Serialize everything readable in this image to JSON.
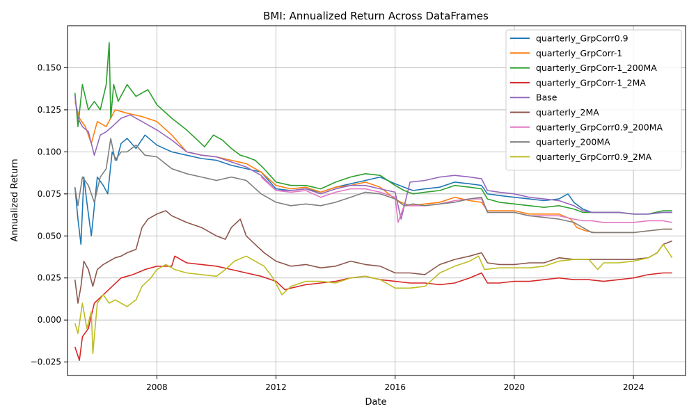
{
  "chart_data": {
    "type": "line",
    "title": "BMI: Annualized Return Across DataFrames",
    "xlabel": "Date",
    "ylabel": "Annualized Return",
    "xlim": [
      2005.0,
      2025.75
    ],
    "ylim": [
      -0.033,
      0.175
    ],
    "x_ticks": [
      2008,
      2012,
      2016,
      2020,
      2024
    ],
    "x_tick_labels": [
      "2008",
      "2012",
      "2016",
      "2020",
      "2024"
    ],
    "y_ticks": [
      -0.025,
      0.0,
      0.025,
      0.05,
      0.075,
      0.1,
      0.125,
      0.15
    ],
    "y_tick_labels": [
      "−0.025",
      "0.000",
      "0.025",
      "0.050",
      "0.075",
      "0.100",
      "0.125",
      "0.150"
    ],
    "grid": true,
    "legend_position": "top-right",
    "series": [
      {
        "name": "quarterly_GrpCorr0.9",
        "color": "#1f77b4",
        "x": [
          2005.25,
          2005.35,
          2005.45,
          2005.55,
          2005.65,
          2005.8,
          2006.0,
          2006.2,
          2006.35,
          2006.5,
          2006.65,
          2006.8,
          2007.0,
          2007.3,
          2007.6,
          2008.0,
          2008.5,
          2009.0,
          2009.5,
          2010.0,
          2010.5,
          2011.0,
          2011.5,
          2012.0,
          2012.5,
          2013.0,
          2013.5,
          2014.0,
          2014.5,
          2015.0,
          2015.5,
          2016.0,
          2016.3,
          2016.6,
          2017.0,
          2017.5,
          2018.0,
          2018.5,
          2018.9,
          2019.1,
          2019.5,
          2020.0,
          2020.5,
          2021.0,
          2021.5,
          2021.8,
          2022.0,
          2022.3,
          2022.6,
          2023.0,
          2023.5,
          2024.0,
          2024.5,
          2025.0,
          2025.3
        ],
        "y": [
          0.079,
          0.06,
          0.045,
          0.085,
          0.07,
          0.05,
          0.085,
          0.08,
          0.075,
          0.1,
          0.095,
          0.105,
          0.108,
          0.102,
          0.11,
          0.104,
          0.1,
          0.098,
          0.096,
          0.095,
          0.092,
          0.09,
          0.088,
          0.078,
          0.077,
          0.078,
          0.076,
          0.079,
          0.081,
          0.083,
          0.085,
          0.081,
          0.079,
          0.077,
          0.078,
          0.079,
          0.082,
          0.081,
          0.08,
          0.075,
          0.074,
          0.073,
          0.072,
          0.071,
          0.072,
          0.075,
          0.07,
          0.066,
          0.064,
          0.064,
          0.064,
          0.063,
          0.063,
          0.064,
          0.064
        ]
      },
      {
        "name": "quarterly_GrpCorr-1",
        "color": "#ff7f0e",
        "x": [
          2005.25,
          2005.4,
          2005.6,
          2005.8,
          2006.0,
          2006.3,
          2006.6,
          2007.0,
          2007.5,
          2008.0,
          2008.5,
          2009.0,
          2009.5,
          2010.0,
          2010.5,
          2011.0,
          2011.5,
          2012.0,
          2012.5,
          2013.0,
          2013.5,
          2014.0,
          2014.5,
          2015.0,
          2015.5,
          2016.0,
          2016.2,
          2016.5,
          2017.0,
          2017.5,
          2018.0,
          2018.5,
          2018.9,
          2019.1,
          2019.5,
          2020.0,
          2020.5,
          2021.0,
          2021.5,
          2021.9,
          2022.1,
          2022.4,
          2022.7,
          2023.0,
          2023.5,
          2024.0,
          2024.5,
          2025.0,
          2025.3
        ],
        "y": [
          0.13,
          0.12,
          0.115,
          0.105,
          0.118,
          0.115,
          0.125,
          0.123,
          0.121,
          0.118,
          0.11,
          0.1,
          0.098,
          0.097,
          0.095,
          0.093,
          0.088,
          0.08,
          0.078,
          0.079,
          0.076,
          0.079,
          0.08,
          0.082,
          0.079,
          0.072,
          0.07,
          0.068,
          0.069,
          0.07,
          0.073,
          0.071,
          0.07,
          0.065,
          0.065,
          0.065,
          0.063,
          0.063,
          0.063,
          0.06,
          0.055,
          0.053,
          0.052,
          0.052,
          0.052,
          0.052,
          0.053,
          0.054,
          0.054
        ]
      },
      {
        "name": "quarterly_GrpCorr-1_200MA",
        "color": "#2ca02c",
        "x": [
          2005.25,
          2005.35,
          2005.5,
          2005.7,
          2005.9,
          2006.1,
          2006.3,
          2006.4,
          2006.45,
          2006.55,
          2006.7,
          2007.0,
          2007.3,
          2007.7,
          2008.0,
          2008.5,
          2009.0,
          2009.6,
          2009.9,
          2010.2,
          2010.5,
          2010.8,
          2011.0,
          2011.3,
          2011.6,
          2012.0,
          2012.5,
          2013.0,
          2013.5,
          2014.0,
          2014.5,
          2015.0,
          2015.5,
          2016.0,
          2016.3,
          2016.6,
          2017.0,
          2017.5,
          2018.0,
          2018.5,
          2018.9,
          2019.1,
          2019.5,
          2020.0,
          2020.5,
          2021.0,
          2021.5,
          2022.0,
          2022.3,
          2022.6,
          2023.0,
          2023.5,
          2024.0,
          2024.5,
          2025.0,
          2025.3
        ],
        "y": [
          0.135,
          0.115,
          0.14,
          0.125,
          0.13,
          0.125,
          0.14,
          0.165,
          0.12,
          0.14,
          0.13,
          0.14,
          0.133,
          0.137,
          0.128,
          0.12,
          0.113,
          0.103,
          0.11,
          0.107,
          0.102,
          0.098,
          0.097,
          0.095,
          0.09,
          0.082,
          0.08,
          0.08,
          0.078,
          0.082,
          0.085,
          0.087,
          0.086,
          0.08,
          0.077,
          0.075,
          0.076,
          0.077,
          0.08,
          0.079,
          0.078,
          0.072,
          0.07,
          0.069,
          0.068,
          0.067,
          0.068,
          0.066,
          0.064,
          0.064,
          0.064,
          0.064,
          0.063,
          0.063,
          0.065,
          0.065
        ]
      },
      {
        "name": "quarterly_GrpCorr-1_2MA",
        "color": "#d62728",
        "x": [
          2005.25,
          2005.4,
          2005.5,
          2005.7,
          2005.9,
          2006.2,
          2006.5,
          2006.8,
          2007.2,
          2007.6,
          2008.0,
          2008.5,
          2008.6,
          2009.0,
          2009.5,
          2010.0,
          2010.5,
          2011.0,
          2011.5,
          2012.0,
          2012.3,
          2012.5,
          2013.0,
          2013.5,
          2014.0,
          2014.5,
          2015.0,
          2015.5,
          2016.0,
          2016.5,
          2017.0,
          2017.5,
          2018.0,
          2018.5,
          2018.9,
          2019.1,
          2019.5,
          2020.0,
          2020.5,
          2021.0,
          2021.5,
          2022.0,
          2022.5,
          2023.0,
          2023.5,
          2024.0,
          2024.5,
          2025.0,
          2025.3
        ],
        "y": [
          -0.016,
          -0.024,
          -0.01,
          -0.005,
          0.01,
          0.015,
          0.02,
          0.025,
          0.027,
          0.03,
          0.032,
          0.032,
          0.038,
          0.034,
          0.033,
          0.032,
          0.03,
          0.028,
          0.026,
          0.023,
          0.018,
          0.019,
          0.021,
          0.022,
          0.023,
          0.025,
          0.026,
          0.024,
          0.023,
          0.022,
          0.022,
          0.021,
          0.022,
          0.025,
          0.028,
          0.022,
          0.022,
          0.023,
          0.023,
          0.024,
          0.025,
          0.024,
          0.024,
          0.023,
          0.024,
          0.025,
          0.027,
          0.028,
          0.028
        ]
      },
      {
        "name": "Base",
        "color": "#9467bd",
        "x": [
          2005.25,
          2005.35,
          2005.5,
          2005.7,
          2005.9,
          2006.1,
          2006.3,
          2006.5,
          2006.8,
          2007.1,
          2007.5,
          2008.0,
          2008.5,
          2009.0,
          2009.5,
          2010.0,
          2010.5,
          2011.0,
          2011.5,
          2012.0,
          2012.5,
          2013.0,
          2013.5,
          2014.0,
          2014.5,
          2015.0,
          2015.5,
          2016.0,
          2016.2,
          2016.5,
          2017.0,
          2017.5,
          2018.0,
          2018.5,
          2018.9,
          2019.1,
          2019.5,
          2020.0,
          2020.5,
          2021.0,
          2021.5,
          2022.0,
          2022.3,
          2022.6,
          2023.0,
          2023.5,
          2024.0,
          2024.5,
          2025.0,
          2025.3
        ],
        "y": [
          0.133,
          0.12,
          0.115,
          0.112,
          0.098,
          0.11,
          0.112,
          0.115,
          0.12,
          0.122,
          0.118,
          0.113,
          0.107,
          0.1,
          0.098,
          0.097,
          0.094,
          0.091,
          0.086,
          0.077,
          0.077,
          0.078,
          0.075,
          0.078,
          0.08,
          0.08,
          0.078,
          0.076,
          0.06,
          0.082,
          0.083,
          0.085,
          0.086,
          0.085,
          0.084,
          0.077,
          0.076,
          0.075,
          0.073,
          0.072,
          0.071,
          0.068,
          0.065,
          0.064,
          0.064,
          0.064,
          0.063,
          0.063,
          0.064,
          0.064
        ]
      },
      {
        "name": "quarterly_2MA",
        "color": "#8c564b",
        "x": [
          2005.25,
          2005.35,
          2005.45,
          2005.55,
          2005.7,
          2005.85,
          2006.0,
          2006.2,
          2006.4,
          2006.6,
          2006.8,
          2007.0,
          2007.3,
          2007.5,
          2007.7,
          2008.0,
          2008.3,
          2008.5,
          2009.0,
          2009.5,
          2010.0,
          2010.3,
          2010.5,
          2010.8,
          2011.0,
          2011.3,
          2011.6,
          2012.0,
          2012.5,
          2013.0,
          2013.5,
          2014.0,
          2014.5,
          2015.0,
          2015.5,
          2016.0,
          2016.5,
          2017.0,
          2017.5,
          2018.0,
          2018.5,
          2018.9,
          2019.1,
          2019.5,
          2020.0,
          2020.5,
          2021.0,
          2021.5,
          2022.0,
          2022.5,
          2023.0,
          2023.5,
          2024.0,
          2024.5,
          2024.8,
          2025.0,
          2025.3
        ],
        "y": [
          0.024,
          0.01,
          0.02,
          0.035,
          0.03,
          0.02,
          0.03,
          0.033,
          0.035,
          0.037,
          0.038,
          0.04,
          0.042,
          0.055,
          0.06,
          0.063,
          0.065,
          0.062,
          0.058,
          0.055,
          0.05,
          0.048,
          0.055,
          0.06,
          0.05,
          0.045,
          0.04,
          0.035,
          0.032,
          0.033,
          0.031,
          0.032,
          0.035,
          0.033,
          0.032,
          0.028,
          0.028,
          0.027,
          0.033,
          0.036,
          0.038,
          0.04,
          0.034,
          0.033,
          0.033,
          0.034,
          0.034,
          0.037,
          0.036,
          0.036,
          0.036,
          0.036,
          0.036,
          0.037,
          0.04,
          0.045,
          0.047
        ]
      },
      {
        "name": "quarterly_GrpCorr0.9_200MA",
        "color": "#e377c2",
        "x": [
          2011.5,
          2012.0,
          2012.5,
          2013.0,
          2013.5,
          2014.0,
          2014.5,
          2015.0,
          2015.5,
          2016.0,
          2016.1,
          2016.3,
          2016.6,
          2017.0,
          2017.5,
          2018.0,
          2018.5,
          2018.9,
          2019.1,
          2019.5,
          2020.0,
          2020.5,
          2021.0,
          2021.5,
          2022.0,
          2022.3,
          2022.6,
          2023.0,
          2023.5,
          2024.0,
          2024.5,
          2025.0,
          2025.3
        ],
        "y": [
          0.085,
          0.077,
          0.076,
          0.077,
          0.073,
          0.076,
          0.078,
          0.078,
          0.076,
          0.073,
          0.058,
          0.068,
          0.068,
          0.068,
          0.069,
          0.071,
          0.072,
          0.072,
          0.064,
          0.064,
          0.064,
          0.062,
          0.062,
          0.062,
          0.06,
          0.059,
          0.059,
          0.058,
          0.058,
          0.058,
          0.059,
          0.059,
          0.058
        ]
      },
      {
        "name": "quarterly_200MA",
        "color": "#7f7f7f",
        "x": [
          2005.25,
          2005.35,
          2005.5,
          2005.7,
          2005.9,
          2006.1,
          2006.3,
          2006.45,
          2006.6,
          2006.8,
          2007.0,
          2007.3,
          2007.6,
          2008.0,
          2008.5,
          2009.0,
          2009.5,
          2010.0,
          2010.5,
          2011.0,
          2011.5,
          2012.0,
          2012.5,
          2013.0,
          2013.5,
          2014.0,
          2014.5,
          2015.0,
          2015.5,
          2016.0,
          2016.3,
          2016.6,
          2017.0,
          2017.5,
          2018.0,
          2018.5,
          2018.9,
          2019.1,
          2019.5,
          2020.0,
          2020.5,
          2021.0,
          2021.5,
          2022.0,
          2022.3,
          2022.6,
          2023.0,
          2023.5,
          2024.0,
          2024.5,
          2025.0,
          2025.3
        ],
        "y": [
          0.079,
          0.068,
          0.085,
          0.08,
          0.07,
          0.085,
          0.09,
          0.108,
          0.095,
          0.1,
          0.1,
          0.104,
          0.098,
          0.097,
          0.09,
          0.087,
          0.085,
          0.083,
          0.085,
          0.083,
          0.075,
          0.07,
          0.068,
          0.069,
          0.068,
          0.07,
          0.073,
          0.076,
          0.075,
          0.072,
          0.068,
          0.069,
          0.068,
          0.069,
          0.07,
          0.072,
          0.073,
          0.064,
          0.064,
          0.064,
          0.062,
          0.061,
          0.06,
          0.058,
          0.055,
          0.052,
          0.052,
          0.052,
          0.052,
          0.053,
          0.054,
          0.054
        ]
      },
      {
        "name": "quarterly_GrpCorr0.9_2MA",
        "color": "#bcbd22",
        "x": [
          2005.25,
          2005.35,
          2005.5,
          2005.65,
          2005.8,
          2005.85,
          2006.0,
          2006.2,
          2006.4,
          2006.6,
          2006.8,
          2007.0,
          2007.3,
          2007.5,
          2007.8,
          2008.0,
          2008.3,
          2008.6,
          2009.0,
          2009.5,
          2010.0,
          2010.3,
          2010.6,
          2011.0,
          2011.3,
          2011.6,
          2011.9,
          2012.2,
          2012.5,
          2013.0,
          2013.5,
          2014.0,
          2014.5,
          2015.0,
          2015.5,
          2016.0,
          2016.5,
          2017.0,
          2017.5,
          2018.0,
          2018.5,
          2018.8,
          2019.0,
          2019.5,
          2020.0,
          2020.5,
          2021.0,
          2021.5,
          2022.0,
          2022.5,
          2022.8,
          2023.0,
          2023.5,
          2024.0,
          2024.5,
          2024.8,
          2025.0,
          2025.3
        ],
        "y": [
          -0.002,
          -0.008,
          0.01,
          -0.005,
          0.005,
          -0.02,
          0.01,
          0.015,
          0.01,
          0.012,
          0.01,
          0.008,
          0.012,
          0.02,
          0.025,
          0.03,
          0.033,
          0.03,
          0.028,
          0.027,
          0.026,
          0.03,
          0.035,
          0.038,
          0.035,
          0.032,
          0.025,
          0.015,
          0.02,
          0.023,
          0.023,
          0.022,
          0.025,
          0.026,
          0.024,
          0.019,
          0.019,
          0.02,
          0.028,
          0.032,
          0.035,
          0.038,
          0.03,
          0.031,
          0.031,
          0.031,
          0.032,
          0.035,
          0.036,
          0.036,
          0.03,
          0.034,
          0.034,
          0.035,
          0.037,
          0.04,
          0.045,
          0.037
        ]
      }
    ]
  }
}
